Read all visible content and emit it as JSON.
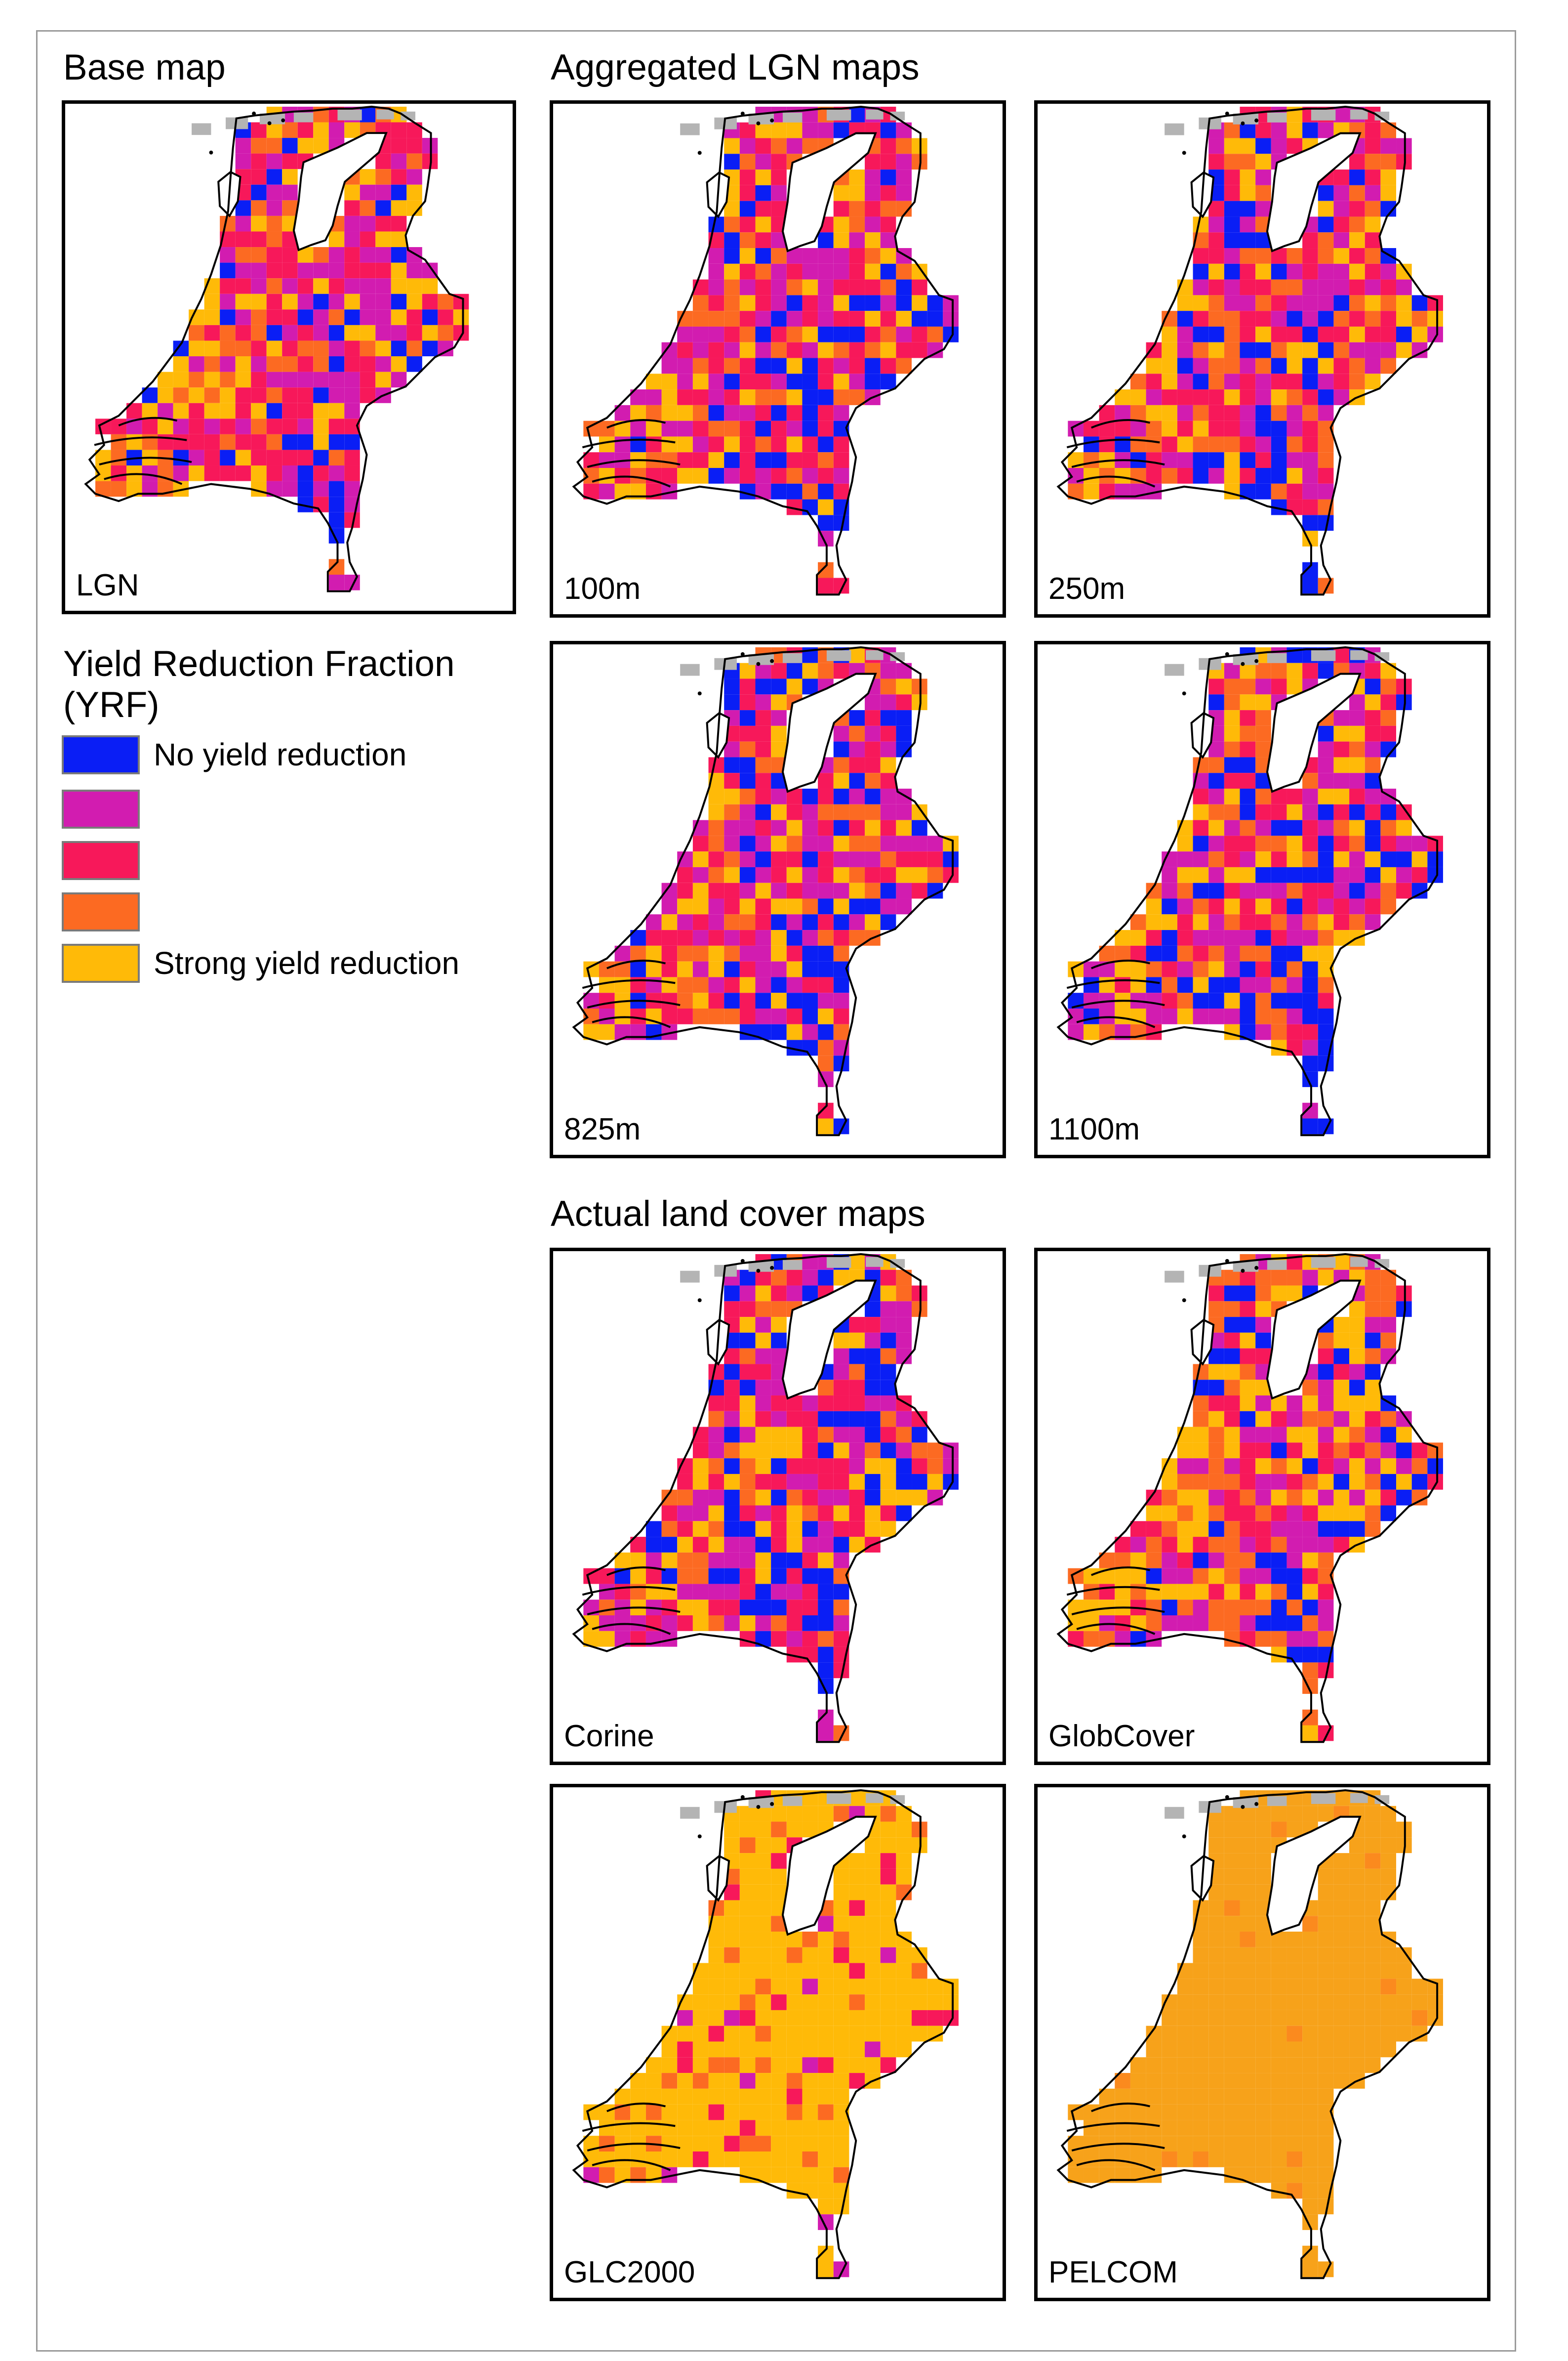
{
  "headings": {
    "base": "Base map",
    "aggregated": "Aggregated LGN maps",
    "actual": "Actual land cover maps"
  },
  "legend": {
    "title_line1": "Yield Reduction Fraction",
    "title_line2": "(YRF)",
    "classes": [
      {
        "color": "#0a1ef5",
        "label": "No yield reduction"
      },
      {
        "color": "#d21cb0",
        "label": ""
      },
      {
        "color": "#f7185a",
        "label": ""
      },
      {
        "color": "#fc6a22",
        "label": ""
      },
      {
        "color": "#ffba08",
        "label": "Strong yield reduction"
      }
    ],
    "nodata_color": "#b4b4b4"
  },
  "panels": [
    {
      "id": "lgn",
      "label": "LGN",
      "dist": [
        0.13,
        0.27,
        0.25,
        0.17,
        0.18
      ]
    },
    {
      "id": "agg-100m",
      "label": "100m",
      "dist": [
        0.14,
        0.26,
        0.24,
        0.17,
        0.19
      ]
    },
    {
      "id": "agg-250m",
      "label": "250m",
      "dist": [
        0.15,
        0.25,
        0.23,
        0.18,
        0.19
      ]
    },
    {
      "id": "agg-825m",
      "label": "825m",
      "dist": [
        0.18,
        0.24,
        0.22,
        0.18,
        0.18
      ]
    },
    {
      "id": "agg-1100m",
      "label": "1100m",
      "dist": [
        0.2,
        0.23,
        0.22,
        0.18,
        0.17
      ]
    },
    {
      "id": "corine",
      "label": "Corine",
      "dist": [
        0.18,
        0.23,
        0.25,
        0.16,
        0.18
      ]
    },
    {
      "id": "globcover",
      "label": "GlobCover",
      "dist": [
        0.16,
        0.2,
        0.18,
        0.21,
        0.25
      ]
    },
    {
      "id": "glc2000",
      "label": "GLC2000",
      "dist": [
        0.0,
        0.03,
        0.07,
        0.1,
        0.8
      ]
    },
    {
      "id": "pelcom",
      "label": "PELCOM",
      "dist": [
        0.0,
        0.0,
        0.0,
        0.12,
        0.88
      ],
      "uniform_color": "#f7a21a"
    }
  ]
}
